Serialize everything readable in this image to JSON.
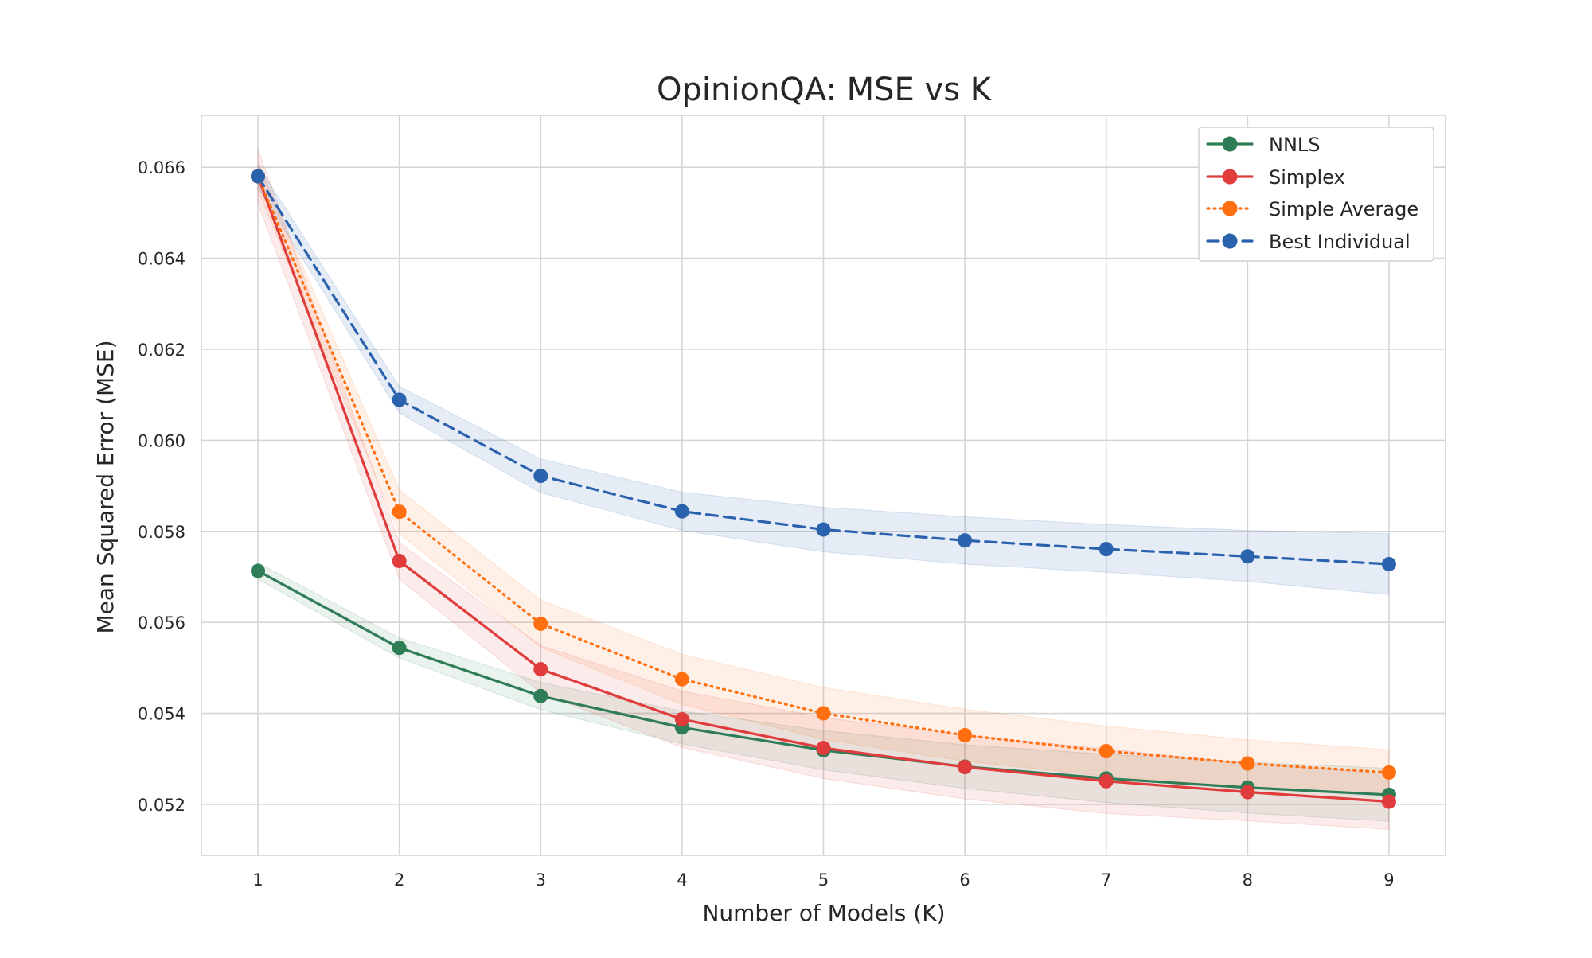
{
  "chart_data": {
    "type": "line",
    "title": "OpinionQA: MSE vs K",
    "xlabel": "Number of Models (K)",
    "ylabel": "Mean Squared Error (MSE)",
    "x": [
      1,
      2,
      3,
      4,
      5,
      6,
      7,
      8,
      9
    ],
    "xlim": [
      0.6,
      9.4
    ],
    "ylim": [
      0.05088,
      0.06714
    ],
    "xticks": [
      1,
      2,
      3,
      4,
      5,
      6,
      7,
      8,
      9
    ],
    "xtick_labels": [
      "1",
      "2",
      "3",
      "4",
      "5",
      "6",
      "7",
      "8",
      "9"
    ],
    "yticks": [
      0.052,
      0.054,
      0.056,
      0.058,
      0.06,
      0.062,
      0.064,
      0.066
    ],
    "ytick_labels": [
      "0.052",
      "0.054",
      "0.056",
      "0.058",
      "0.060",
      "0.062",
      "0.064",
      "0.066"
    ],
    "grid": true,
    "legend_position": "top-right",
    "series": [
      {
        "name": "NNLS",
        "color": "#2e7d57",
        "line_style": "solid",
        "values": [
          0.05713,
          0.05544,
          0.05438,
          0.05369,
          0.05319,
          0.05283,
          0.05257,
          0.05237,
          0.05221
        ],
        "lower": [
          0.05695,
          0.05522,
          0.05408,
          0.05333,
          0.05276,
          0.05235,
          0.05204,
          0.05181,
          0.05163
        ],
        "upper": [
          0.05731,
          0.05566,
          0.05468,
          0.05405,
          0.05362,
          0.05331,
          0.0531,
          0.05293,
          0.05279
        ]
      },
      {
        "name": "Simplex",
        "color": "#e03c3c",
        "line_style": "solid",
        "values": [
          0.0658,
          0.05735,
          0.05497,
          0.05387,
          0.05324,
          0.05282,
          0.05251,
          0.05227,
          0.05206
        ],
        "lower": [
          0.0652,
          0.05695,
          0.05445,
          0.05325,
          0.05257,
          0.05212,
          0.0518,
          0.05164,
          0.05145
        ],
        "upper": [
          0.0664,
          0.05775,
          0.05549,
          0.05449,
          0.05391,
          0.05352,
          0.05322,
          0.0529,
          0.05267
        ]
      },
      {
        "name": "Simple Average",
        "color": "#ff6f0f",
        "line_style": "dotted",
        "values": [
          0.0658,
          0.05843,
          0.05597,
          0.05475,
          0.054,
          0.05352,
          0.05317,
          0.0529,
          0.0527
        ],
        "lower": [
          0.0655,
          0.05795,
          0.05545,
          0.0542,
          0.05343,
          0.05295,
          0.05262,
          0.05238,
          0.0522
        ],
        "upper": [
          0.0661,
          0.05891,
          0.05649,
          0.0553,
          0.05457,
          0.05409,
          0.05372,
          0.05342,
          0.0532
        ]
      },
      {
        "name": "Best Individual",
        "color": "#2a62ad",
        "line_style": "dashed",
        "values": [
          0.0658,
          0.06089,
          0.05922,
          0.05844,
          0.05804,
          0.0578,
          0.05761,
          0.05745,
          0.05728
        ],
        "lower": [
          0.06555,
          0.0606,
          0.05885,
          0.05802,
          0.05755,
          0.05728,
          0.0571,
          0.0569,
          0.05661
        ],
        "upper": [
          0.06605,
          0.06118,
          0.05959,
          0.05886,
          0.05853,
          0.05832,
          0.05815,
          0.05802,
          0.05795
        ]
      }
    ]
  }
}
